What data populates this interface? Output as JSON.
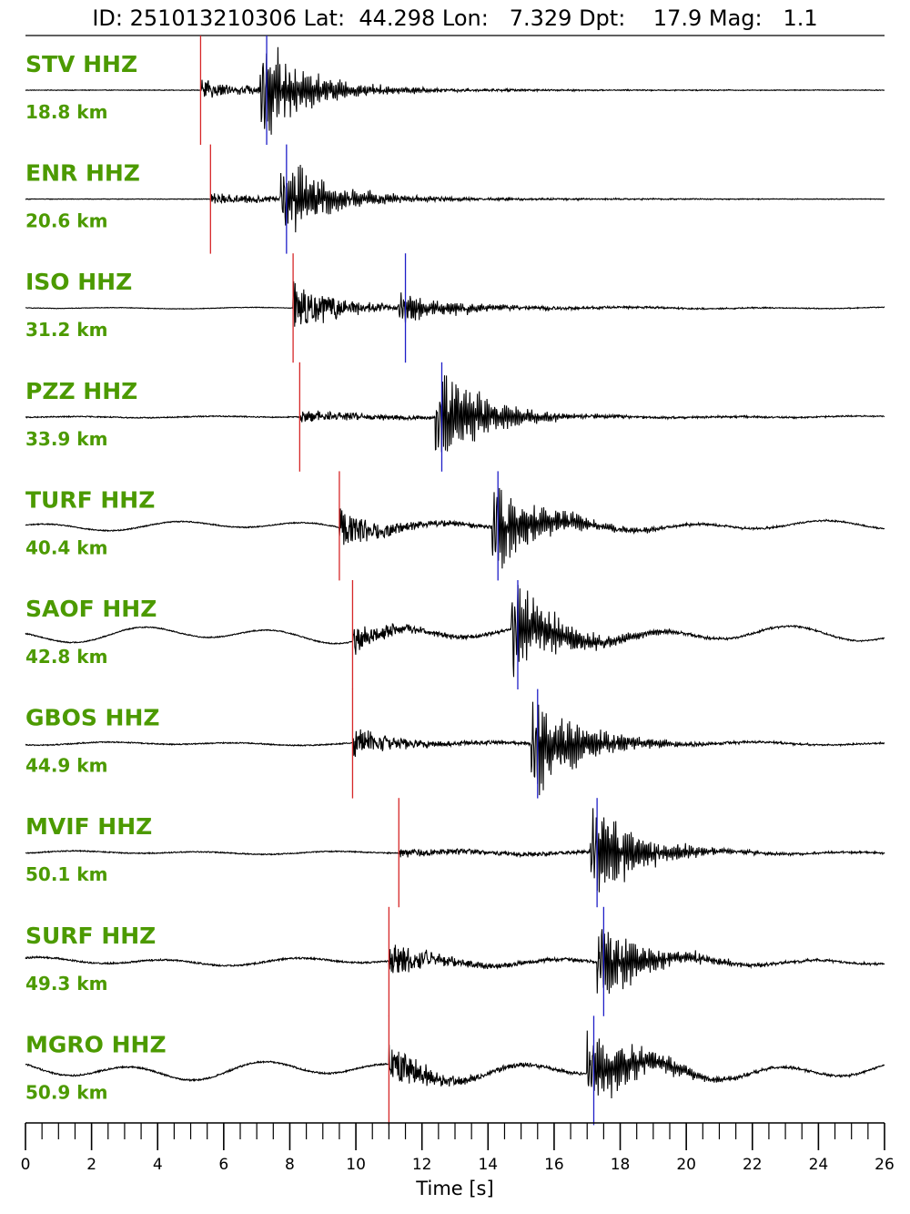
{
  "title": "ID: 251013210306 Lat:  44.298 Lon:   7.329 Dpt:    17.9 Mag:   1.1",
  "colors": {
    "label": "#4c9a00",
    "trace": "#000000",
    "p_pick": "#d62728",
    "s_pick": "#1f1fc8",
    "axis": "#000000"
  },
  "chart_data": {
    "type": "line",
    "xlabel": "Time [s]",
    "xlim": [
      0,
      26
    ],
    "major_ticks": [
      0,
      2,
      4,
      6,
      8,
      10,
      12,
      14,
      16,
      18,
      20,
      22,
      24,
      26
    ],
    "tick_labels": [
      "0",
      "2",
      "4",
      "6",
      "8",
      "10",
      "12",
      "14",
      "16",
      "18",
      "20",
      "22",
      "24",
      "26"
    ],
    "minor_tick_step": 0.5,
    "traces": [
      {
        "station": "STV HHZ",
        "distance": "18.8 km",
        "p_time": 5.3,
        "s_time": 7.3,
        "drift": 0.0,
        "noise": 0.01,
        "p_amp": 0.18,
        "s_amp": 0.9
      },
      {
        "station": "ENR HHZ",
        "distance": "20.6 km",
        "p_time": 5.6,
        "s_time": 7.9,
        "drift": 0.0,
        "noise": 0.01,
        "p_amp": 0.1,
        "s_amp": 0.75
      },
      {
        "station": "ISO HHZ",
        "distance": "31.2 km",
        "p_time": 8.1,
        "s_time": 11.5,
        "drift": 0.01,
        "noise": 0.01,
        "p_amp": 0.65,
        "s_amp": 0.3
      },
      {
        "station": "PZZ HHZ",
        "distance": "33.9 km",
        "p_time": 8.3,
        "s_time": 12.6,
        "drift": 0.01,
        "noise": 0.02,
        "p_amp": 0.15,
        "s_amp": 0.9
      },
      {
        "station": "TURF HHZ",
        "distance": "40.4 km",
        "p_time": 9.5,
        "s_time": 14.3,
        "drift": 0.06,
        "noise": 0.02,
        "p_amp": 0.45,
        "s_amp": 0.8
      },
      {
        "station": "SAOF HHZ",
        "distance": "42.8 km",
        "p_time": 9.9,
        "s_time": 14.9,
        "drift": 0.1,
        "noise": 0.02,
        "p_amp": 0.3,
        "s_amp": 0.85
      },
      {
        "station": "GBOS HHZ",
        "distance": "44.9 km",
        "p_time": 9.9,
        "s_time": 15.5,
        "drift": 0.02,
        "noise": 0.02,
        "p_amp": 0.3,
        "s_amp": 0.9
      },
      {
        "station": "MVIF HHZ",
        "distance": "50.1 km",
        "p_time": 11.3,
        "s_time": 17.3,
        "drift": 0.02,
        "noise": 0.02,
        "p_amp": 0.05,
        "s_amp": 0.85
      },
      {
        "station": "SURF HHZ",
        "distance": "49.3 km",
        "p_time": 11.0,
        "s_time": 17.5,
        "drift": 0.05,
        "noise": 0.03,
        "p_amp": 0.4,
        "s_amp": 0.7
      },
      {
        "station": "MGRO HHZ",
        "distance": "50.9 km",
        "p_time": 11.0,
        "s_time": 17.2,
        "drift": 0.12,
        "noise": 0.03,
        "p_amp": 0.5,
        "s_amp": 0.8
      }
    ]
  }
}
